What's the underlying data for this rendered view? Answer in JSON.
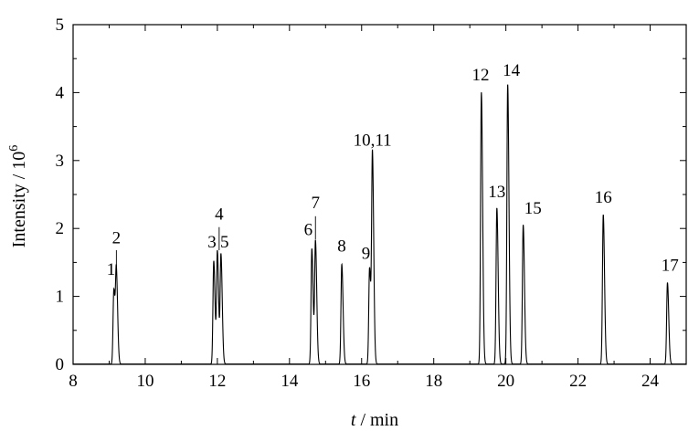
{
  "chart_data": {
    "type": "line",
    "xlabel": {
      "var": "t",
      "rest": " / min"
    },
    "ylabel": {
      "base": "Intensity / 10",
      "sup": "6"
    },
    "xlim": [
      8,
      25
    ],
    "ylim": [
      0,
      5
    ],
    "xticks": [
      8,
      10,
      12,
      14,
      16,
      18,
      20,
      22,
      24
    ],
    "yticks": [
      0,
      1,
      2,
      3,
      4,
      5
    ],
    "series": [
      {
        "peaks": [
          {
            "label": "1",
            "t": 9.13,
            "h": 1.1
          },
          {
            "label": "2",
            "t": 9.2,
            "h": 1.3
          },
          {
            "label": "3",
            "t": 11.9,
            "h": 1.52
          },
          {
            "label": "4",
            "t": 12.0,
            "h": 1.65
          },
          {
            "label": "5",
            "t": 12.1,
            "h": 1.6
          },
          {
            "label": "6",
            "t": 14.62,
            "h": 1.7
          },
          {
            "label": "7",
            "t": 14.72,
            "h": 1.8
          },
          {
            "label": "8",
            "t": 15.45,
            "h": 1.47
          },
          {
            "label": "9",
            "t": 16.22,
            "h": 1.42
          },
          {
            "label": "10,11",
            "t": 16.3,
            "h": 3.05
          },
          {
            "label": "12",
            "t": 19.32,
            "h": 4.0
          },
          {
            "label": "13",
            "t": 19.75,
            "h": 2.3
          },
          {
            "label": "14",
            "t": 20.05,
            "h": 4.12
          },
          {
            "label": "15",
            "t": 20.48,
            "h": 2.05
          },
          {
            "label": "16",
            "t": 22.7,
            "h": 2.2
          },
          {
            "label": "17",
            "t": 24.48,
            "h": 1.2
          }
        ]
      }
    ],
    "annotations": [
      {
        "text": "1",
        "t": 9.05,
        "y": 1.32,
        "leader": null
      },
      {
        "text": "2",
        "t": 9.2,
        "y": 1.78,
        "leader": [
          1.38,
          1.68
        ]
      },
      {
        "text": "3",
        "t": 11.85,
        "y": 1.72,
        "leader": null
      },
      {
        "text": "4",
        "t": 12.05,
        "y": 2.13,
        "leader": [
          1.68,
          2.02
        ]
      },
      {
        "text": "5",
        "t": 12.2,
        "y": 1.72,
        "leader": null
      },
      {
        "text": "6",
        "t": 14.52,
        "y": 1.9,
        "leader": null
      },
      {
        "text": "7",
        "t": 14.72,
        "y": 2.3,
        "leader": [
          1.84,
          2.18
        ]
      },
      {
        "text": "8",
        "t": 15.45,
        "y": 1.66,
        "leader": null
      },
      {
        "text": "9",
        "t": 16.12,
        "y": 1.55,
        "leader": null
      },
      {
        "text": "10,11",
        "t": 16.3,
        "y": 3.22,
        "leader": null
      },
      {
        "text": "12",
        "t": 19.3,
        "y": 4.18,
        "leader": null
      },
      {
        "text": "13",
        "t": 19.75,
        "y": 2.46,
        "leader": null
      },
      {
        "text": "14",
        "t": 20.15,
        "y": 4.25,
        "leader": null
      },
      {
        "text": "15",
        "t": 20.75,
        "y": 2.22,
        "leader": null
      },
      {
        "text": "16",
        "t": 22.7,
        "y": 2.38,
        "leader": null
      },
      {
        "text": "17",
        "t": 24.55,
        "y": 1.38,
        "leader": null
      }
    ]
  }
}
